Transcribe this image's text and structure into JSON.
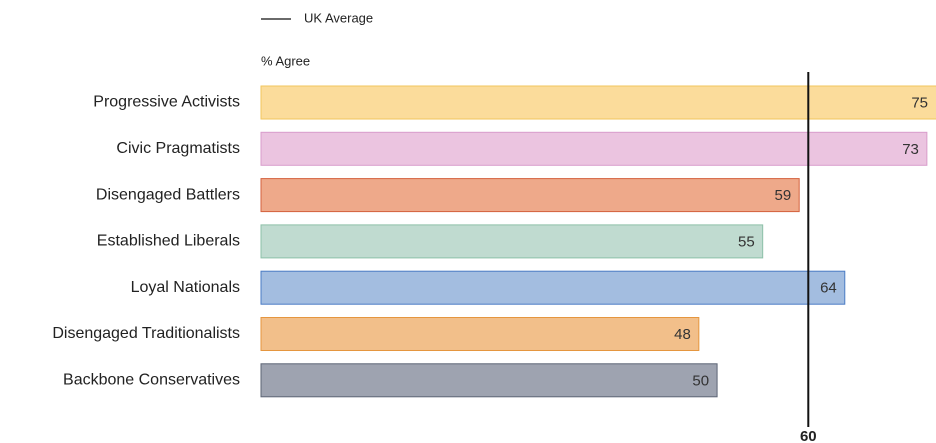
{
  "chart_data": {
    "type": "bar",
    "orientation": "horizontal",
    "value_label": "% Agree",
    "categories": [
      "Progressive Activists",
      "Civic Pragmatists",
      "Disengaged Battlers",
      "Established Liberals",
      "Loyal Nationals",
      "Disengaged Traditionalists",
      "Backbone Conservatives"
    ],
    "values": [
      75,
      73,
      59,
      55,
      64,
      48,
      50
    ],
    "colors": [
      "#fbdc9b",
      "#ebc4e0",
      "#eea98a",
      "#c0dbd0",
      "#a3bde0",
      "#f2bf8a",
      "#9ea3b0"
    ],
    "stroke_colors": [
      "#f2c65e",
      "#d89ccb",
      "#d4613d",
      "#8cc0a8",
      "#4a7bc4",
      "#e5963f",
      "#5c6475"
    ],
    "xlim": [
      0,
      74
    ],
    "reference_line": {
      "name": "UK Average",
      "value": 60,
      "color": "#111111"
    }
  }
}
